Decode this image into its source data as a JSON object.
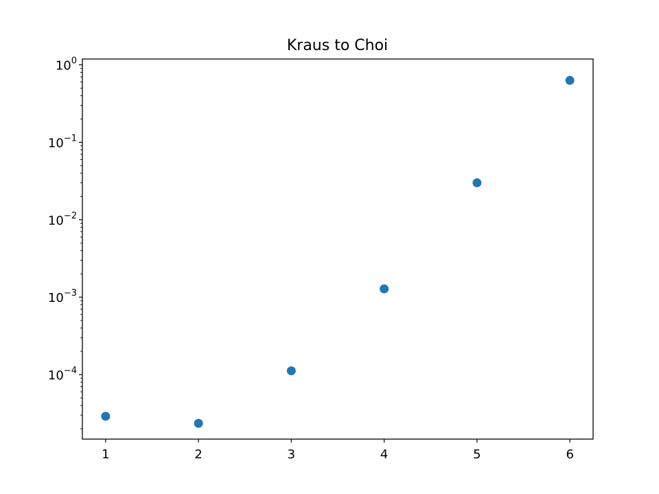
{
  "chart_data": {
    "type": "scatter",
    "title": "Kraus to Choi",
    "xlabel": "",
    "ylabel": "",
    "xlim": [
      0.75,
      6.25
    ],
    "ylim": [
      1.47e-05,
      1.19
    ],
    "yscale": "log",
    "grid": false,
    "x_ticks": [
      1,
      2,
      3,
      4,
      5,
      6
    ],
    "y_ticks": [
      {
        "base": "10",
        "exp": "−4",
        "value": 0.0001
      },
      {
        "base": "10",
        "exp": "−3",
        "value": 0.001
      },
      {
        "base": "10",
        "exp": "−2",
        "value": 0.01
      },
      {
        "base": "10",
        "exp": "−1",
        "value": 0.1
      },
      {
        "base": "10",
        "exp": "0",
        "value": 1
      }
    ],
    "series": [
      {
        "color": "#1f77b4",
        "x": [
          1,
          2,
          3,
          4,
          5,
          6
        ],
        "y": [
          2.9e-05,
          2.35e-05,
          0.000112,
          0.00128,
          0.03,
          0.63
        ]
      }
    ]
  }
}
